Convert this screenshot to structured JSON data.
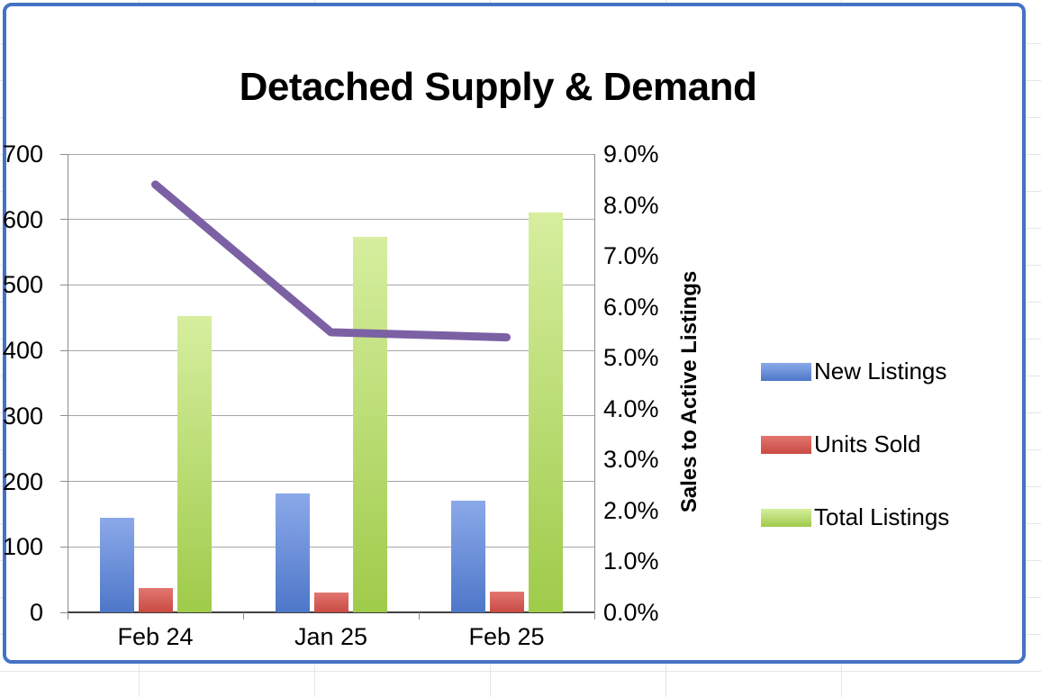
{
  "chart_data": {
    "type": "combo-bar-line",
    "title": "Detached Supply & Demand",
    "categories": [
      "Feb 24",
      "Jan 25",
      "Feb 25"
    ],
    "series": [
      {
        "name": "New Listings",
        "chart": "bar",
        "axis": "left",
        "values": [
          145,
          182,
          170
        ],
        "color_top": "#8BA9E9",
        "color_bottom": "#4E77C9"
      },
      {
        "name": "Units Sold",
        "chart": "bar",
        "axis": "left",
        "values": [
          37,
          30,
          32
        ],
        "color_top": "#E2766F",
        "color_bottom": "#C94A44"
      },
      {
        "name": "Total Listings",
        "chart": "bar",
        "axis": "left",
        "values": [
          452,
          573,
          610
        ],
        "color_top": "#D6EE9F",
        "color_bottom": "#9FCB4A"
      },
      {
        "name": "Sales to Active Listings",
        "chart": "line",
        "axis": "right",
        "values": [
          8.4,
          5.5,
          5.4
        ],
        "color": "#7B61A4"
      }
    ],
    "left_axis": {
      "min": 0,
      "max": 700,
      "step": 100,
      "ticks": [
        "0",
        "100",
        "200",
        "300",
        "400",
        "500",
        "600",
        "700"
      ]
    },
    "right_axis": {
      "min": 0,
      "max": 9,
      "step": 1,
      "title": "Sales to Active Listings",
      "ticks": [
        "0.0%",
        "1.0%",
        "2.0%",
        "3.0%",
        "4.0%",
        "5.0%",
        "6.0%",
        "7.0%",
        "8.0%",
        "9.0%"
      ]
    },
    "legend": {
      "position": "right",
      "entries": [
        "New Listings",
        "Units Sold",
        "Total Listings"
      ]
    },
    "grid": true,
    "colors": {
      "chart_border": "#4472C4",
      "gridline": "#A6A6A6",
      "axis": "#404040"
    }
  }
}
